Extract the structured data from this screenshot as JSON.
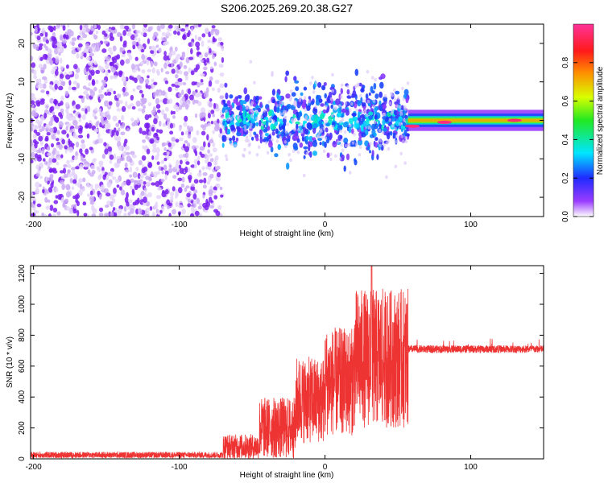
{
  "title": "S206.2025.269.20.38.G27",
  "colors": {
    "snr_line": "#ee3333",
    "scatter_purple": "#7a1ef0",
    "axis": "#000000"
  },
  "chart_data": [
    {
      "type": "heatmap",
      "xlabel": "Height of straight line (km)",
      "ylabel": "Frequency (Hz)",
      "xlim": [
        -202,
        150
      ],
      "ylim": [
        -25,
        25
      ],
      "xticks": [
        -200,
        -100,
        0,
        100
      ],
      "yticks": [
        -20,
        -10,
        0,
        10,
        20
      ],
      "colorbar": {
        "label": "Normalized spectral amplitude",
        "range": [
          0,
          1
        ],
        "ticks": [
          0.0,
          0.2,
          0.4,
          0.6,
          0.8
        ],
        "tick_labels": [
          "0.0",
          "0.2",
          "0.4",
          "0.6",
          "0.8"
        ]
      },
      "regions": [
        {
          "name": "noise",
          "x_range": [
            -202,
            -70
          ],
          "freq_range": [
            -25,
            25
          ],
          "amplitude": 0.15
        },
        {
          "name": "transition",
          "x_range": [
            -70,
            57
          ],
          "freq_range": [
            -10,
            10
          ],
          "amplitude": 0.3
        },
        {
          "name": "tone",
          "x_range": [
            57,
            150
          ],
          "freq_center": 0,
          "amplitude": 0.95
        }
      ],
      "tone_peaks": [
        {
          "x": 60,
          "freq": -1.5,
          "amplitude": 0.97
        },
        {
          "x": 82,
          "freq": -0.5,
          "amplitude": 0.97
        },
        {
          "x": 130,
          "freq": 0,
          "amplitude": 0.95
        }
      ]
    },
    {
      "type": "line",
      "xlabel": "Height of straight line (km)",
      "ylabel": "SNR (10 * v/v)",
      "xlim": [
        -202,
        150
      ],
      "ylim": [
        0,
        1250
      ],
      "xticks": [
        -200,
        -100,
        0,
        100
      ],
      "yticks": [
        0,
        200,
        400,
        600,
        800,
        1000,
        1200
      ],
      "segments": [
        {
          "x_range": [
            -202,
            -70
          ],
          "mean": 25,
          "spread": 20
        },
        {
          "x_range": [
            -70,
            -45
          ],
          "mean": 80,
          "spread": 80
        },
        {
          "x_range": [
            -45,
            -20
          ],
          "mean": 200,
          "spread": 200
        },
        {
          "x_range": [
            -20,
            0
          ],
          "mean": 380,
          "spread": 280
        },
        {
          "x_range": [
            0,
            20
          ],
          "mean": 500,
          "spread": 350
        },
        {
          "x_range": [
            20,
            57
          ],
          "mean": 650,
          "spread": 450
        },
        {
          "x_range": [
            57,
            150
          ],
          "mean": 710,
          "spread": 25
        }
      ],
      "peak": {
        "x": 32,
        "y": 1250
      }
    }
  ]
}
